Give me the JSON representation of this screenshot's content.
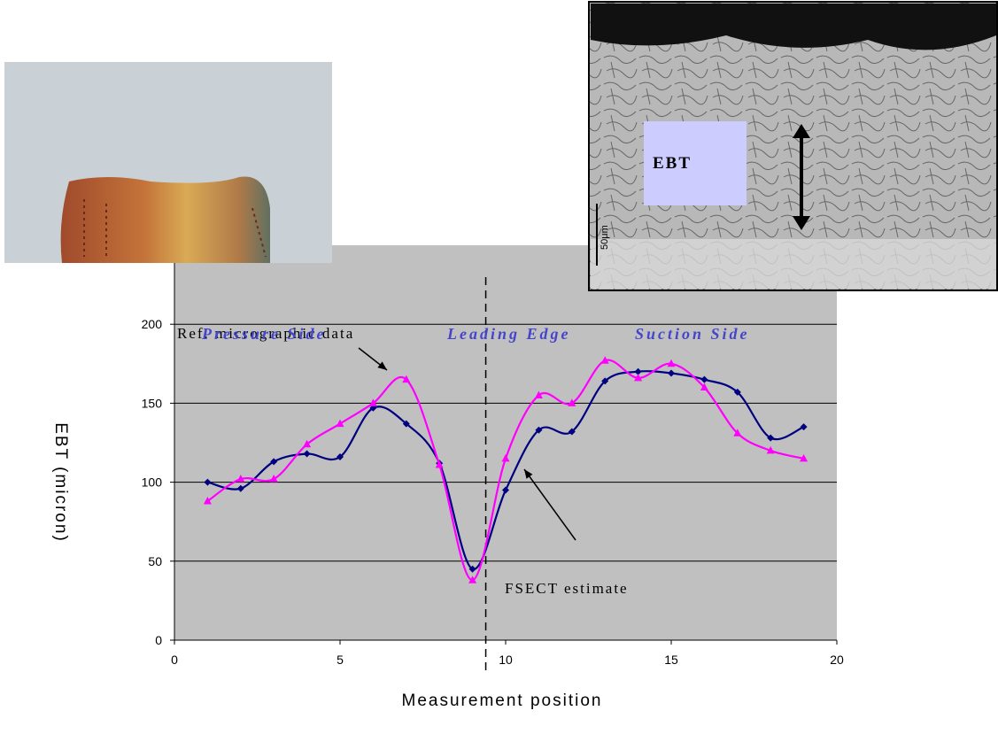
{
  "chart_data": {
    "type": "line",
    "xlabel": "Measurement position",
    "ylabel": "EBT (micron)",
    "xlim": [
      0,
      20
    ],
    "xticks": [
      0,
      5,
      10,
      15,
      20
    ],
    "ylim": [
      0,
      250
    ],
    "yticks": [
      0,
      50,
      100,
      150,
      200
    ],
    "grid": true,
    "x": [
      1,
      2,
      3,
      4,
      5,
      6,
      7,
      8,
      9,
      10,
      11,
      12,
      13,
      14,
      15,
      16,
      17,
      18,
      19
    ],
    "series": [
      {
        "name": "FSECT estimate",
        "color": "#000080",
        "marker": "diamond",
        "values": [
          100,
          96,
          113,
          118,
          116,
          147,
          137,
          112,
          45,
          95,
          133,
          132,
          164,
          170,
          169,
          165,
          157,
          128,
          135
        ]
      },
      {
        "name": "Ref. micrographic data",
        "color": "#ff00ff",
        "marker": "triangle",
        "values": [
          88,
          102,
          102,
          124,
          137,
          150,
          165,
          111,
          38,
          115,
          155,
          150,
          177,
          166,
          175,
          160,
          131,
          120,
          115
        ]
      }
    ],
    "divider_x": 9.4,
    "region_labels": [
      "Pressure Side",
      "Leading Edge",
      "Suction Side"
    ],
    "micrograph_label": "EBT",
    "scale_bar_label": "50μm"
  }
}
